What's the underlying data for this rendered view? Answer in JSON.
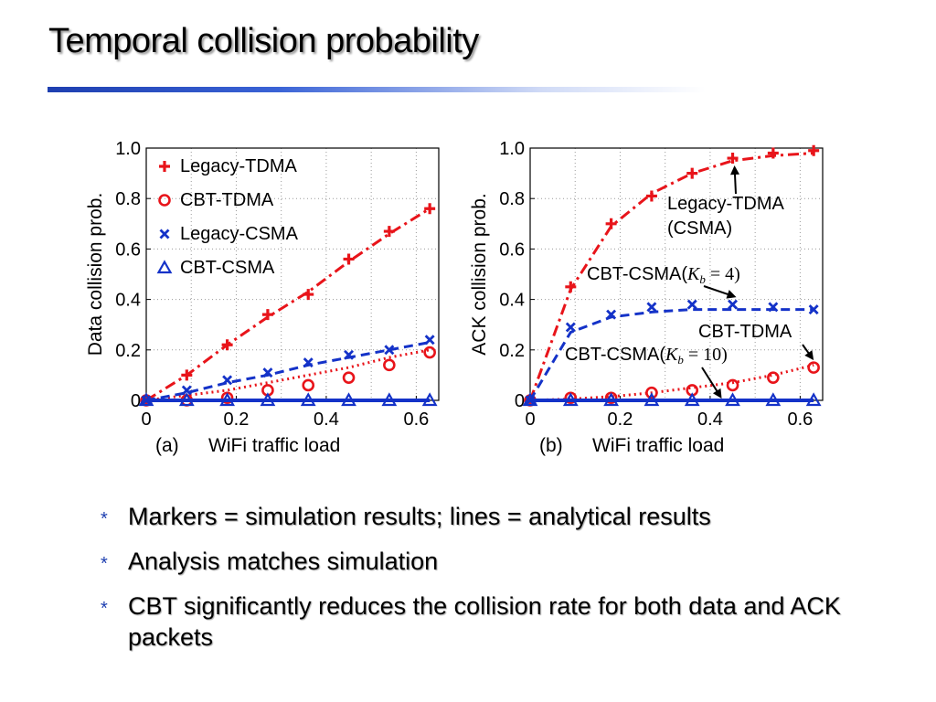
{
  "slide": {
    "title": "Temporal collision probability",
    "bullet_glyph": "*",
    "bullets": [
      "Markers = simulation results; lines = analytical results",
      "Analysis matches simulation",
      "CBT significantly reduces the collision rate for both data and ACK packets"
    ]
  },
  "colors": {
    "red": "#e8141a",
    "blue": "#1432c8",
    "title_rule": "#1e3fb0"
  },
  "chart_data": [
    {
      "id": "a",
      "type": "line",
      "panel_label": "(a)",
      "xlabel": "WiFi traffic load",
      "ylabel": "Data collision prob.",
      "xlim": [
        0,
        0.65
      ],
      "ylim": [
        0,
        1.0
      ],
      "xticks": [
        "0",
        "0.2",
        "0.4",
        "0.6"
      ],
      "yticks": [
        "0",
        "0.2",
        "0.4",
        "0.6",
        "0.8",
        "1.0"
      ],
      "grid": true,
      "legend_position": "top-left",
      "series": [
        {
          "name": "Legacy-TDMA",
          "color": "#e8141a",
          "marker": "plus",
          "line": "dashdot",
          "x": [
            0,
            0.09,
            0.18,
            0.27,
            0.36,
            0.45,
            0.54,
            0.63
          ],
          "y": [
            0,
            0.1,
            0.22,
            0.34,
            0.42,
            0.56,
            0.67,
            0.76
          ],
          "fit_y": [
            0,
            0.1,
            0.22,
            0.33,
            0.43,
            0.55,
            0.66,
            0.76
          ]
        },
        {
          "name": "CBT-TDMA",
          "color": "#e8141a",
          "marker": "circle",
          "line": "dotted",
          "x": [
            0,
            0.09,
            0.18,
            0.27,
            0.36,
            0.45,
            0.54,
            0.63
          ],
          "y": [
            0,
            0,
            0.01,
            0.04,
            0.06,
            0.09,
            0.14,
            0.19
          ],
          "fit_y": [
            0,
            0.02,
            0.04,
            0.07,
            0.1,
            0.13,
            0.17,
            0.2
          ]
        },
        {
          "name": "Legacy-CSMA",
          "color": "#1432c8",
          "marker": "x",
          "line": "dashed",
          "x": [
            0,
            0.09,
            0.18,
            0.27,
            0.36,
            0.45,
            0.54,
            0.63
          ],
          "y": [
            0,
            0.04,
            0.08,
            0.11,
            0.15,
            0.18,
            0.2,
            0.24
          ],
          "fit_y": [
            0,
            0.03,
            0.07,
            0.1,
            0.14,
            0.17,
            0.2,
            0.23
          ]
        },
        {
          "name": "CBT-CSMA",
          "color": "#1432c8",
          "marker": "triangle",
          "line": "solid",
          "x": [
            0,
            0.09,
            0.18,
            0.27,
            0.36,
            0.45,
            0.54,
            0.63
          ],
          "y": [
            0,
            0,
            0,
            0,
            0,
            0,
            0,
            0
          ],
          "fit_y": [
            0,
            0,
            0,
            0,
            0,
            0,
            0,
            0
          ]
        }
      ]
    },
    {
      "id": "b",
      "type": "line",
      "panel_label": "(b)",
      "xlabel": "WiFi traffic load",
      "ylabel": "ACK collision prob.",
      "xlim": [
        0,
        0.65
      ],
      "ylim": [
        0,
        1.0
      ],
      "xticks": [
        "0",
        "0.2",
        "0.4",
        "0.6"
      ],
      "yticks": [
        "0",
        "0.2",
        "0.4",
        "0.6",
        "0.8",
        "1.0"
      ],
      "grid": true,
      "annotations": [
        {
          "text": "Legacy-TDMA",
          "target_series": 0,
          "target_point": 5
        },
        {
          "text": "(CSMA)"
        },
        {
          "text": "CBT-CSMA(K_b = 4)",
          "prefix": "CBT-CSMA(",
          "math": "K",
          "sub": "b",
          "suffix": " = 4)",
          "target_series": 2,
          "target_point": 5
        },
        {
          "text": "CBT-TDMA",
          "target_series": 1,
          "target_point": 7
        },
        {
          "text": "CBT-CSMA(K_b = 10)",
          "prefix": "CBT-CSMA(",
          "math": "K",
          "sub": "b",
          "suffix": " = 10)",
          "target_series": 3,
          "target_point": 5
        }
      ],
      "series": [
        {
          "name": "Legacy-TDMA (CSMA)",
          "color": "#e8141a",
          "marker": "plus",
          "line": "dashdot",
          "x": [
            0,
            0.09,
            0.18,
            0.27,
            0.36,
            0.45,
            0.54,
            0.63
          ],
          "y": [
            0,
            0.45,
            0.7,
            0.81,
            0.9,
            0.96,
            0.98,
            0.99
          ],
          "fit_y": [
            0,
            0.44,
            0.69,
            0.82,
            0.9,
            0.95,
            0.97,
            0.98
          ]
        },
        {
          "name": "CBT-TDMA",
          "color": "#e8141a",
          "marker": "circle",
          "line": "dotted",
          "x": [
            0,
            0.09,
            0.18,
            0.27,
            0.36,
            0.45,
            0.54,
            0.63
          ],
          "y": [
            0,
            0.01,
            0.01,
            0.03,
            0.04,
            0.06,
            0.09,
            0.13
          ],
          "fit_y": [
            0,
            0.005,
            0.015,
            0.03,
            0.05,
            0.07,
            0.1,
            0.14
          ]
        },
        {
          "name": "CBT-CSMA (K_b = 4)",
          "color": "#1432c8",
          "marker": "x",
          "line": "dashed",
          "x": [
            0,
            0.09,
            0.18,
            0.27,
            0.36,
            0.45,
            0.54,
            0.63
          ],
          "y": [
            0,
            0.29,
            0.34,
            0.37,
            0.38,
            0.38,
            0.37,
            0.36
          ],
          "fit_y": [
            0,
            0.27,
            0.33,
            0.35,
            0.36,
            0.36,
            0.36,
            0.36
          ]
        },
        {
          "name": "CBT-CSMA (K_b = 10)",
          "color": "#1432c8",
          "marker": "triangle",
          "line": "solid",
          "x": [
            0,
            0.09,
            0.18,
            0.27,
            0.36,
            0.45,
            0.54,
            0.63
          ],
          "y": [
            0,
            0,
            0,
            0,
            0,
            0,
            0,
            0
          ],
          "fit_y": [
            0,
            0,
            0,
            0,
            0,
            0,
            0,
            0
          ]
        }
      ]
    }
  ]
}
